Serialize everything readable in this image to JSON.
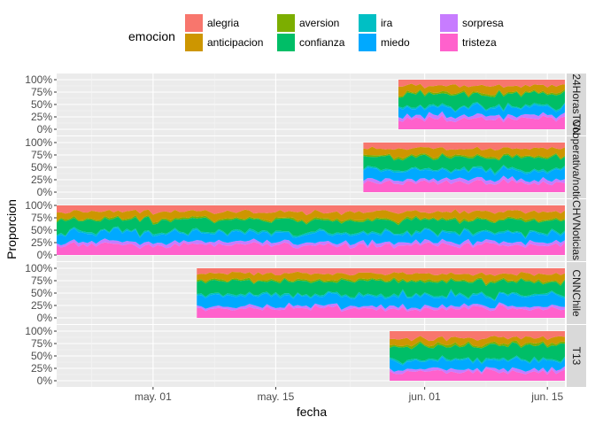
{
  "chart_data": {
    "type": "area",
    "stacking": "fill",
    "xlabel": "fecha",
    "ylabel": "Proporcion",
    "x_ticks": [
      "may. 01",
      "may. 15",
      "jun. 01",
      "jun. 15"
    ],
    "x_tick_dates": [
      "2021-05-01",
      "2021-05-15",
      "2021-06-01",
      "2021-06-15"
    ],
    "x_range": [
      "2021-04-20",
      "2021-06-17"
    ],
    "y_ticks": [
      "0%",
      "25%",
      "50%",
      "75%",
      "100%"
    ],
    "y_range": [
      0,
      1
    ],
    "grid": true,
    "legend": {
      "title": "emocion",
      "placement": "top",
      "entries": [
        {
          "name": "alegria",
          "color": "#F8766D"
        },
        {
          "name": "anticipacion",
          "color": "#CD9600"
        },
        {
          "name": "aversion",
          "color": "#7CAE00"
        },
        {
          "name": "confianza",
          "color": "#00BE67"
        },
        {
          "name": "ira",
          "color": "#00BFC4"
        },
        {
          "name": "miedo",
          "color": "#00A9FF"
        },
        {
          "name": "sorpresa",
          "color": "#C77CFF"
        },
        {
          "name": "tristeza",
          "color": "#FF61CC"
        }
      ]
    },
    "stack_order_bottom_to_top": [
      "tristeza",
      "sorpresa",
      "miedo",
      "ira",
      "confianza",
      "aversion",
      "anticipacion",
      "alegria"
    ],
    "panels": [
      {
        "label": "24HorasTVN",
        "start": "2021-05-29",
        "end": "2021-06-17",
        "mean_shares": {
          "alegria": 0.13,
          "anticipacion": 0.14,
          "aversion": 0.03,
          "confianza": 0.24,
          "ira": 0.03,
          "miedo": 0.16,
          "sorpresa": 0.07,
          "tristeza": 0.2
        }
      },
      {
        "label": "Cooperativa/noticias",
        "start": "2021-05-25",
        "end": "2021-06-17",
        "mean_shares": {
          "alegria": 0.12,
          "anticipacion": 0.15,
          "aversion": 0.03,
          "confianza": 0.24,
          "ira": 0.03,
          "miedo": 0.17,
          "sorpresa": 0.06,
          "tristeza": 0.2
        }
      },
      {
        "label": "CHVNoticias",
        "start": "2021-04-20",
        "end": "2021-06-17",
        "mean_shares": {
          "alegria": 0.13,
          "anticipacion": 0.14,
          "aversion": 0.03,
          "confianza": 0.23,
          "ira": 0.03,
          "miedo": 0.18,
          "sorpresa": 0.06,
          "tristeza": 0.2
        }
      },
      {
        "label": "CNNChile",
        "start": "2021-05-06",
        "end": "2021-06-17",
        "mean_shares": {
          "alegria": 0.11,
          "anticipacion": 0.13,
          "aversion": 0.03,
          "confianza": 0.26,
          "ira": 0.03,
          "miedo": 0.2,
          "sorpresa": 0.05,
          "tristeza": 0.19
        }
      },
      {
        "label": "T13",
        "start": "2021-05-28",
        "end": "2021-06-17",
        "mean_shares": {
          "alegria": 0.14,
          "anticipacion": 0.12,
          "aversion": 0.04,
          "confianza": 0.27,
          "ira": 0.03,
          "miedo": 0.17,
          "sorpresa": 0.05,
          "tristeza": 0.18
        }
      }
    ]
  }
}
